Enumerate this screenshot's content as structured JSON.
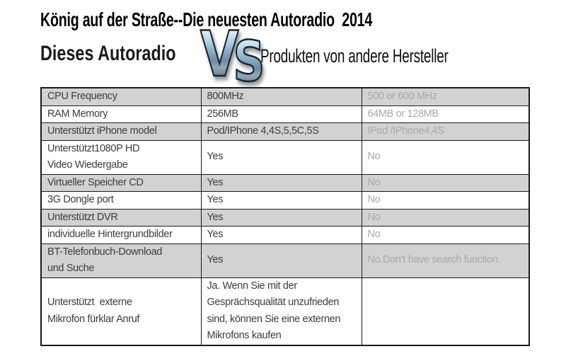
{
  "header": {
    "title": "König auf der Straße--Die neuesten Autoradio  2014"
  },
  "versus": {
    "left_label": "Dieses Autoradio",
    "vs_letter_v": "V",
    "vs_letter_s": "S",
    "right_label": "Produkten von andere Hersteller"
  },
  "table": {
    "rows": [
      {
        "feature": "CPU Frequency",
        "this_product": "800MHz",
        "others": "500 or 600 MHz",
        "shaded": true
      },
      {
        "feature": "RAM Memory",
        "this_product": "256MB",
        "others": "64MB or 128MB",
        "shaded": false
      },
      {
        "feature": "Unterstützt iPhone model",
        "this_product": "Pod/IPhone 4,4S,5,5C,5S",
        "others": "IPod /IPhone4,4S",
        "shaded": true
      },
      {
        "feature": "Unterstützt1080P HD\nVideo Wiedergabe",
        "this_product": "Yes",
        "others": "No",
        "shaded": false
      },
      {
        "feature": "Virtueller Speicher CD",
        "this_product": "Yes",
        "others": "No",
        "shaded": true
      },
      {
        "feature": "3G Dongle port",
        "this_product": "Yes",
        "others": "No",
        "shaded": false
      },
      {
        "feature": "Unterstützt DVR",
        "this_product": "Yes",
        "others": "No",
        "shaded": true
      },
      {
        "feature": "individuelle Hintergrundbilder",
        "this_product": "Yes",
        "others": "No",
        "shaded": false
      },
      {
        "feature": "BT-Telefonbuch-Download\nund Suche",
        "this_product": "Yes",
        "others": "No.Don’t have search function.",
        "shaded": true
      },
      {
        "feature": "Unterstützt  externe\nMikrofon fürklar Anruf",
        "this_product": "Ja. Wenn Sie mit der\nGesprächsqualität unzufrieden\nsind, können Sie eine externen\nMikrofons kaufen",
        "others": "",
        "shaded": false
      }
    ]
  },
  "colors": {
    "shaded_row_bg": "#d2d2d2",
    "feature_text": "#3d3d3d",
    "others_text": "#a9a9a9",
    "border": "#1a1a1a",
    "title_text": "#000000"
  }
}
